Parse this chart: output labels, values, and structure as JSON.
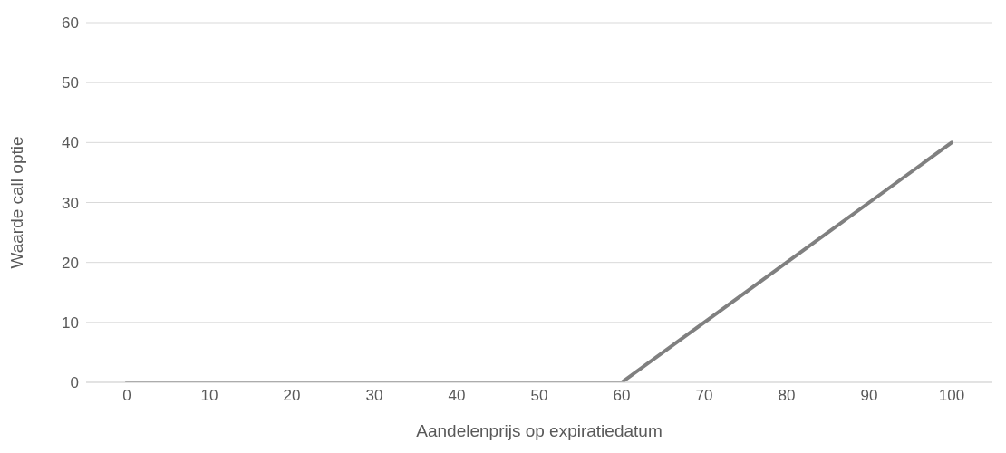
{
  "chart_data": {
    "type": "line",
    "xlabel": "Aandelenprijs op expiratiedatum",
    "ylabel": "Waarde call optie",
    "categories": [
      "0",
      "10",
      "20",
      "30",
      "40",
      "50",
      "60",
      "70",
      "80",
      "90",
      "100"
    ],
    "series": [
      {
        "color": "#808080",
        "values": [
          0,
          0,
          0,
          0,
          0,
          0,
          0,
          10,
          20,
          30,
          40
        ]
      }
    ],
    "ylim": [
      0,
      60
    ],
    "yticks": [
      0,
      10,
      20,
      30,
      40,
      50,
      60
    ],
    "grid": "y",
    "legend": false,
    "marker": "none",
    "line_style": "solid"
  }
}
